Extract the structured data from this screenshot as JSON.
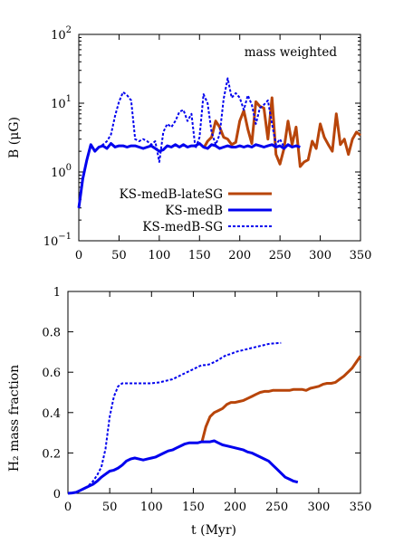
{
  "chart_data": [
    {
      "type": "line",
      "ylabel": "B (μG)",
      "yscale": "log",
      "xlim": [
        0,
        350
      ],
      "ylim": [
        0.1,
        100
      ],
      "xticks": [
        "0",
        "50",
        "100",
        "150",
        "200",
        "250",
        "300",
        "350"
      ],
      "yticks": [
        {
          "base": "10",
          "exp": "−1",
          "value": 0.1
        },
        {
          "base": "10",
          "exp": "0",
          "value": 1
        },
        {
          "base": "10",
          "exp": "1",
          "value": 10
        },
        {
          "base": "10",
          "exp": "2",
          "value": 100
        }
      ],
      "annotation": "mass weighted",
      "legend_position": "bottom-right",
      "series": [
        {
          "name": "KS-medB-lateSG",
          "color": "#b8450a",
          "style": "solid",
          "x": [
            155,
            160,
            165,
            170,
            175,
            180,
            185,
            190,
            195,
            200,
            205,
            210,
            215,
            220,
            225,
            230,
            235,
            240,
            245,
            250,
            255,
            260,
            265,
            270,
            275,
            280,
            285,
            290,
            295,
            300,
            305,
            310,
            315,
            320,
            325,
            330,
            335,
            340,
            345,
            350
          ],
          "y": [
            2.2,
            2.8,
            3.2,
            5.5,
            4.5,
            3.2,
            3.0,
            2.5,
            2.7,
            5.5,
            7.8,
            4.2,
            2.6,
            10.5,
            9.0,
            8.5,
            3.0,
            12.0,
            1.8,
            1.3,
            2.2,
            5.5,
            2.5,
            4.5,
            1.2,
            1.4,
            1.5,
            2.8,
            2.2,
            5.0,
            3.2,
            2.5,
            2.0,
            7.0,
            2.5,
            3.0,
            1.8,
            3.0,
            3.8,
            3.4
          ]
        },
        {
          "name": "KS-medB",
          "color": "#0000ee",
          "style": "solid",
          "x": [
            0,
            5,
            10,
            15,
            20,
            25,
            30,
            35,
            40,
            45,
            50,
            55,
            60,
            65,
            70,
            75,
            80,
            85,
            90,
            95,
            100,
            105,
            110,
            115,
            120,
            125,
            130,
            135,
            140,
            145,
            150,
            155,
            160,
            165,
            170,
            175,
            180,
            185,
            190,
            195,
            200,
            205,
            210,
            215,
            220,
            225,
            230,
            235,
            240,
            245,
            250,
            255,
            260,
            265,
            270,
            275
          ],
          "y": [
            0.3,
            0.8,
            1.5,
            2.5,
            2.0,
            2.3,
            2.4,
            2.2,
            2.6,
            2.3,
            2.4,
            2.4,
            2.3,
            2.4,
            2.4,
            2.3,
            2.2,
            2.3,
            2.4,
            2.2,
            2.0,
            2.1,
            2.4,
            2.3,
            2.5,
            2.3,
            2.5,
            2.3,
            2.4,
            2.4,
            2.6,
            2.3,
            2.2,
            2.5,
            2.4,
            2.2,
            2.3,
            2.4,
            2.3,
            2.3,
            2.4,
            2.3,
            2.4,
            2.3,
            2.5,
            2.4,
            2.3,
            2.4,
            2.5,
            2.3,
            2.4,
            2.2,
            2.5,
            2.3,
            2.4,
            2.3
          ]
        },
        {
          "name": "KS-medB-SG",
          "color": "#0000ee",
          "style": "dashed",
          "x": [
            0,
            5,
            10,
            15,
            20,
            25,
            30,
            35,
            40,
            45,
            50,
            55,
            60,
            65,
            70,
            75,
            80,
            85,
            90,
            95,
            100,
            105,
            110,
            115,
            120,
            125,
            130,
            135,
            140,
            145,
            150,
            155,
            160,
            165,
            170,
            175,
            180,
            185,
            190,
            195,
            200,
            205,
            210,
            215,
            220,
            225,
            230,
            235,
            240,
            245,
            250,
            255
          ],
          "y": [
            0.3,
            0.8,
            1.5,
            2.5,
            2.0,
            2.3,
            2.5,
            2.8,
            3.5,
            6.5,
            10.5,
            14.5,
            13.0,
            11.0,
            3.0,
            2.8,
            3.0,
            2.8,
            2.5,
            2.8,
            1.4,
            3.8,
            5.0,
            4.5,
            5.5,
            7.5,
            8.0,
            5.5,
            7.0,
            2.2,
            3.2,
            13.5,
            10.0,
            3.8,
            2.5,
            3.5,
            11.5,
            23.0,
            12.0,
            14.0,
            12.0,
            8.0,
            13.0,
            9.5,
            5.0,
            8.5,
            9.5,
            11.0,
            5.0,
            2.5,
            3.0,
            2.3
          ]
        }
      ]
    },
    {
      "type": "line",
      "xlabel": "t (Myr)",
      "ylabel": "H₂ mass fraction",
      "xlim": [
        0,
        350
      ],
      "ylim": [
        0,
        1
      ],
      "xticks": [
        "0",
        "50",
        "100",
        "150",
        "200",
        "250",
        "300",
        "350"
      ],
      "yticks": [
        "0",
        "0.2",
        "0.4",
        "0.6",
        "0.8",
        "1"
      ],
      "series": [
        {
          "name": "KS-medB-lateSG",
          "color": "#b8450a",
          "style": "solid",
          "x": [
            160,
            165,
            170,
            175,
            180,
            185,
            190,
            195,
            200,
            205,
            210,
            215,
            220,
            225,
            230,
            235,
            240,
            245,
            250,
            255,
            260,
            265,
            270,
            275,
            280,
            285,
            290,
            295,
            300,
            305,
            310,
            315,
            320,
            325,
            330,
            335,
            340,
            345,
            350
          ],
          "y": [
            0.25,
            0.33,
            0.38,
            0.4,
            0.41,
            0.42,
            0.44,
            0.45,
            0.45,
            0.455,
            0.46,
            0.47,
            0.48,
            0.49,
            0.5,
            0.505,
            0.505,
            0.51,
            0.51,
            0.51,
            0.51,
            0.51,
            0.515,
            0.515,
            0.515,
            0.51,
            0.52,
            0.525,
            0.53,
            0.54,
            0.545,
            0.545,
            0.55,
            0.565,
            0.58,
            0.6,
            0.62,
            0.65,
            0.68
          ]
        },
        {
          "name": "KS-medB",
          "color": "#0000ee",
          "style": "solid",
          "x": [
            0,
            5,
            10,
            15,
            20,
            25,
            30,
            35,
            40,
            45,
            50,
            55,
            60,
            65,
            70,
            75,
            80,
            85,
            90,
            95,
            100,
            105,
            110,
            115,
            120,
            125,
            130,
            135,
            140,
            145,
            150,
            155,
            160,
            165,
            170,
            175,
            180,
            185,
            190,
            195,
            200,
            205,
            210,
            215,
            220,
            225,
            230,
            235,
            240,
            245,
            250,
            255,
            260,
            265,
            270,
            275
          ],
          "y": [
            0,
            0.002,
            0.005,
            0.015,
            0.025,
            0.035,
            0.045,
            0.06,
            0.08,
            0.095,
            0.11,
            0.115,
            0.125,
            0.14,
            0.16,
            0.17,
            0.175,
            0.17,
            0.165,
            0.17,
            0.175,
            0.18,
            0.19,
            0.2,
            0.21,
            0.215,
            0.225,
            0.235,
            0.245,
            0.25,
            0.25,
            0.25,
            0.255,
            0.255,
            0.255,
            0.26,
            0.25,
            0.24,
            0.235,
            0.23,
            0.225,
            0.22,
            0.215,
            0.205,
            0.2,
            0.19,
            0.18,
            0.17,
            0.16,
            0.14,
            0.12,
            0.1,
            0.08,
            0.07,
            0.06,
            0.055
          ]
        },
        {
          "name": "KS-medB-SG",
          "color": "#0000ee",
          "style": "dashed",
          "x": [
            0,
            5,
            10,
            15,
            20,
            25,
            30,
            35,
            40,
            45,
            50,
            55,
            60,
            65,
            70,
            75,
            80,
            85,
            90,
            95,
            100,
            105,
            110,
            115,
            120,
            125,
            130,
            135,
            140,
            145,
            150,
            155,
            160,
            165,
            170,
            175,
            180,
            185,
            190,
            195,
            200,
            205,
            210,
            215,
            220,
            225,
            230,
            235,
            240,
            245,
            250,
            255
          ],
          "y": [
            0,
            0.002,
            0.005,
            0.015,
            0.025,
            0.04,
            0.06,
            0.09,
            0.13,
            0.22,
            0.38,
            0.48,
            0.53,
            0.545,
            0.545,
            0.545,
            0.545,
            0.545,
            0.545,
            0.545,
            0.545,
            0.548,
            0.55,
            0.555,
            0.56,
            0.565,
            0.575,
            0.585,
            0.595,
            0.605,
            0.615,
            0.625,
            0.635,
            0.635,
            0.64,
            0.65,
            0.66,
            0.675,
            0.685,
            0.69,
            0.7,
            0.705,
            0.71,
            0.715,
            0.72,
            0.725,
            0.73,
            0.735,
            0.74,
            0.742,
            0.744,
            0.745
          ]
        }
      ]
    }
  ]
}
